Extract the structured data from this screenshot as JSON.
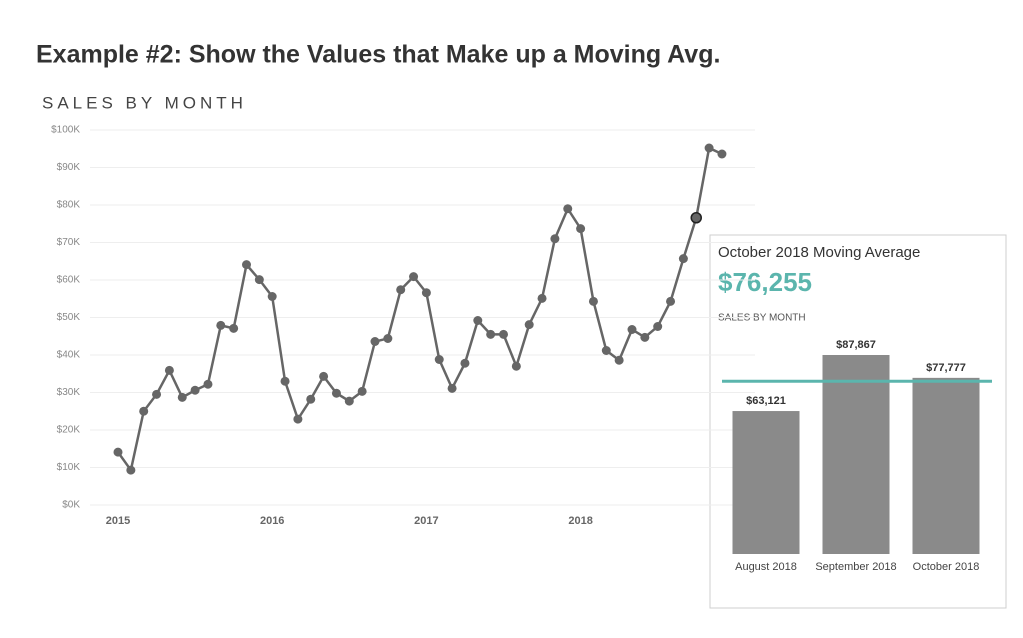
{
  "chart_data": [
    {
      "type": "line",
      "title": "Example #2: Show the Values that Make up a Moving Avg.",
      "subtitle": "SALES BY MONTH",
      "categories": [
        "2015",
        null,
        null,
        null,
        null,
        null,
        null,
        null,
        null,
        null,
        null,
        null,
        "2016",
        null,
        null,
        null,
        null,
        null,
        null,
        null,
        null,
        null,
        null,
        null,
        "2017",
        null,
        null,
        null,
        null,
        null,
        null,
        null,
        null,
        null,
        null,
        null,
        "2018",
        null,
        null,
        null,
        null,
        null,
        null,
        null,
        null,
        null,
        null,
        null
      ],
      "series": [
        {
          "name": "Sales",
          "color": "#666666",
          "values": [
            14100,
            9300,
            25000,
            29500,
            35900,
            28700,
            30600,
            32200,
            47900,
            47100,
            64100,
            60100,
            55600,
            33000,
            22900,
            28200,
            34300,
            29800,
            27700,
            30300,
            43600,
            44400,
            57400,
            60900,
            56600,
            38800,
            31100,
            37800,
            49200,
            45500,
            45500,
            37000,
            48100,
            55100,
            71000,
            79000,
            73700,
            54300,
            41200,
            38600,
            46800,
            44700,
            47600,
            54300,
            65700,
            76600,
            95200,
            93600
          ]
        }
      ],
      "highlight": 45,
      "ylim": [
        0,
        100000
      ],
      "yticks": [
        {
          "value": 0,
          "label": "$0K"
        },
        {
          "value": 10000,
          "label": "$10K"
        },
        {
          "value": 20000,
          "label": "$20K"
        },
        {
          "value": 30000,
          "label": "$30K"
        },
        {
          "value": 40000,
          "label": "$40K"
        },
        {
          "value": 50000,
          "label": "$50K"
        },
        {
          "value": 60000,
          "label": "$60K"
        },
        {
          "value": 70000,
          "label": "$70K"
        },
        {
          "value": 80000,
          "label": "$80K"
        },
        {
          "value": 90000,
          "label": "$90K"
        },
        {
          "value": 100000,
          "label": "$100K"
        }
      ],
      "grid": true
    },
    {
      "type": "bar",
      "title": "October 2018 Moving Average",
      "subtitle": "SALES BY MONTH",
      "reference_line": {
        "value": 76255,
        "label": "$76,255",
        "color": "#5bb5ad"
      },
      "categories": [
        "August 2018",
        "September 2018",
        "October 2018"
      ],
      "values": [
        63121,
        87867,
        77777
      ],
      "value_labels": [
        "$63,121",
        "$87,867",
        "$77,777"
      ],
      "color": "#8a8a8a"
    }
  ]
}
